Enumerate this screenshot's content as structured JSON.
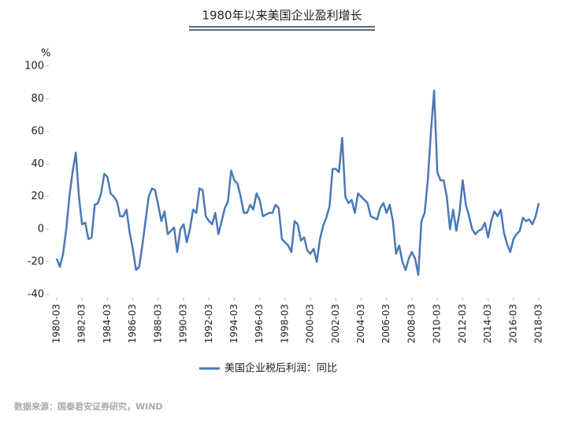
{
  "chart_data": {
    "type": "line",
    "title": "1980年以来美国企业盈利增长",
    "y_unit": "%",
    "source": "数据来源：国泰君安证券研究，WIND",
    "ylim": [
      -40,
      100
    ],
    "yticks": [
      -40,
      -20,
      0,
      20,
      40,
      60,
      80,
      100
    ],
    "categories": [
      "1980-03",
      null,
      null,
      null,
      null,
      null,
      null,
      null,
      "1982-03",
      null,
      null,
      null,
      null,
      null,
      null,
      null,
      "1984-03",
      null,
      null,
      null,
      null,
      null,
      null,
      null,
      "1986-03",
      null,
      null,
      null,
      null,
      null,
      null,
      null,
      "1988-03",
      null,
      null,
      null,
      null,
      null,
      null,
      null,
      "1990-03",
      null,
      null,
      null,
      null,
      null,
      null,
      null,
      "1992-03",
      null,
      null,
      null,
      null,
      null,
      null,
      null,
      "1994-03",
      null,
      null,
      null,
      null,
      null,
      null,
      null,
      "1996-03",
      null,
      null,
      null,
      null,
      null,
      null,
      null,
      "1998-03",
      null,
      null,
      null,
      null,
      null,
      null,
      null,
      "2000-03",
      null,
      null,
      null,
      null,
      null,
      null,
      null,
      "2002-03",
      null,
      null,
      null,
      null,
      null,
      null,
      null,
      "2004-03",
      null,
      null,
      null,
      null,
      null,
      null,
      null,
      "2006-03",
      null,
      null,
      null,
      null,
      null,
      null,
      null,
      "2008-03",
      null,
      null,
      null,
      null,
      null,
      null,
      null,
      "2010-03",
      null,
      null,
      null,
      null,
      null,
      null,
      null,
      "2012-03",
      null,
      null,
      null,
      null,
      null,
      null,
      null,
      "2014-03",
      null,
      null,
      null,
      null,
      null,
      null,
      null,
      "2016-03",
      null,
      null,
      null,
      null,
      null,
      null,
      null,
      "2018-03"
    ],
    "series": [
      {
        "name": "美国企业税后利润：同比",
        "color": "#4a79b5",
        "values": [
          -18,
          -23,
          -15,
          0,
          20,
          35,
          47,
          20,
          3,
          4,
          -6,
          -5,
          15,
          16,
          22,
          34,
          32,
          22,
          20,
          17,
          8,
          8,
          12,
          -2,
          -12,
          -25,
          -23,
          -10,
          5,
          20,
          25,
          24,
          15,
          5,
          11,
          -3,
          -1,
          1,
          -14,
          0,
          3,
          -8,
          0,
          12,
          10,
          25,
          24,
          8,
          5,
          3,
          10,
          -3,
          5,
          13,
          17,
          36,
          30,
          28,
          20,
          10,
          10,
          15,
          12,
          22,
          18,
          8,
          9,
          10,
          10,
          15,
          13,
          -6,
          -8,
          -10,
          -14,
          5,
          3,
          -7,
          -5,
          -13,
          -15,
          -12,
          -20,
          -6,
          2,
          7,
          14,
          37,
          37,
          35,
          56,
          20,
          16,
          18,
          10,
          22,
          20,
          18,
          16,
          8,
          7,
          6,
          13,
          16,
          10,
          15,
          5,
          -15,
          -10,
          -20,
          -25,
          -18,
          -14,
          -18,
          -28,
          5,
          10,
          30,
          60,
          85,
          35,
          30,
          30,
          20,
          0,
          12,
          -1,
          10,
          30,
          15,
          8,
          0,
          -3,
          -1,
          0,
          4,
          -5,
          5,
          11,
          8,
          12,
          -2,
          -9,
          -14,
          -6,
          -3,
          -1,
          7,
          5,
          6,
          3,
          8,
          16
        ]
      }
    ]
  }
}
